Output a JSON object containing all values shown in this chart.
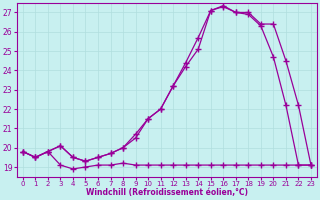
{
  "xlabel": "Windchill (Refroidissement éolien,°C)",
  "bg_color": "#c8f0f0",
  "line_color": "#990099",
  "grid_color": "#b0dede",
  "xlim": [
    -0.5,
    23.5
  ],
  "ylim": [
    18.5,
    27.5
  ],
  "xticks": [
    0,
    1,
    2,
    3,
    4,
    5,
    6,
    7,
    8,
    9,
    10,
    11,
    12,
    13,
    14,
    15,
    16,
    17,
    18,
    19,
    20,
    21,
    22,
    23
  ],
  "yticks": [
    19,
    20,
    21,
    22,
    23,
    24,
    25,
    26,
    27
  ],
  "curve1_x": [
    0,
    1,
    2,
    3,
    4,
    5,
    6,
    7,
    8,
    9,
    10,
    11,
    12,
    13,
    14,
    15,
    16,
    17,
    18,
    19,
    20,
    21,
    22,
    23
  ],
  "curve1_y": [
    19.8,
    19.5,
    19.8,
    19.1,
    18.9,
    19.0,
    19.1,
    19.1,
    19.2,
    19.1,
    19.1,
    19.1,
    19.1,
    19.1,
    19.1,
    19.1,
    19.1,
    19.1,
    19.1,
    19.1,
    19.1,
    19.1,
    19.1,
    19.1
  ],
  "curve2_x": [
    0,
    1,
    2,
    3,
    4,
    5,
    6,
    7,
    8,
    9,
    10,
    11,
    12,
    13,
    14,
    15,
    16,
    17,
    18,
    19,
    20,
    21,
    22,
    23
  ],
  "curve2_y": [
    19.8,
    19.5,
    19.8,
    20.1,
    19.5,
    19.3,
    19.5,
    19.7,
    20.0,
    20.5,
    21.5,
    22.0,
    23.2,
    24.4,
    25.7,
    27.1,
    27.3,
    27.0,
    26.9,
    26.3,
    24.7,
    22.2,
    19.1,
    19.1
  ],
  "curve3_x": [
    0,
    1,
    2,
    3,
    4,
    5,
    6,
    7,
    8,
    9,
    10,
    11,
    12,
    13,
    14,
    15,
    16,
    17,
    18,
    19,
    20,
    21,
    22,
    23
  ],
  "curve3_y": [
    19.8,
    19.5,
    19.8,
    20.1,
    19.5,
    19.3,
    19.5,
    19.7,
    20.0,
    20.7,
    21.5,
    22.0,
    23.2,
    24.2,
    25.1,
    27.1,
    27.35,
    27.0,
    27.0,
    26.4,
    26.4,
    24.5,
    22.2,
    19.1
  ]
}
